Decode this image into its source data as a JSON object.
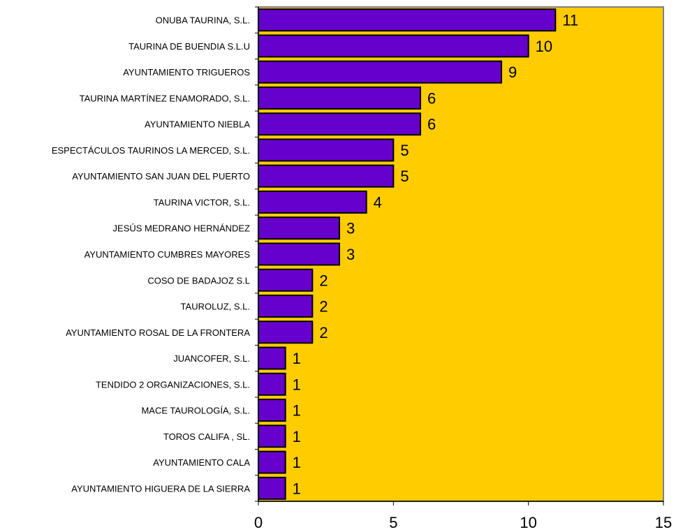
{
  "chart_data": {
    "type": "bar",
    "orientation": "horizontal",
    "categories": [
      "ONUBA TAURINA, S.L.",
      "TAURINA DE BUENDIA S.L.U",
      "AYUNTAMIENTO TRIGUEROS",
      "TAURINA MARTÍNEZ ENAMORADO, S.L.",
      "AYUNTAMIENTO NIEBLA",
      "ESPECTÁCULOS TAURINOS LA MERCED, S.L.",
      "AYUNTAMIENTO SAN JUAN DEL PUERTO",
      "TAURINA VICTOR, S.L.",
      "JESÚS MEDRANO HERNÁNDEZ",
      "AYUNTAMIENTO CUMBRES MAYORES",
      "COSO DE BADAJOZ S.L",
      "TAUROLUZ, S.L.",
      "AYUNTAMIENTO ROSAL DE LA FRONTERA",
      "JUANCOFER, S.L.",
      "TENDIDO 2 ORGANIZACIONES, S.L.",
      "MACE TAUROLOGÍA, S.L.",
      "TOROS CALIFA , SL.",
      "AYUNTAMIENTO CALA",
      "AYUNTAMIENTO HIGUERA DE LA SIERRA"
    ],
    "values": [
      11,
      10,
      9,
      6,
      6,
      5,
      5,
      4,
      3,
      3,
      2,
      2,
      2,
      1,
      1,
      1,
      1,
      1,
      1
    ],
    "xlim": [
      0,
      15
    ],
    "xticks": [
      "0",
      "5",
      "10",
      "15"
    ],
    "title": "",
    "xlabel": "",
    "ylabel": "",
    "grid": false,
    "data_labels": true,
    "colors": {
      "plot_background": "#FFCC00",
      "bar_fill": "#6600CC",
      "bar_stroke": "#000000",
      "frame": "#808080"
    }
  }
}
